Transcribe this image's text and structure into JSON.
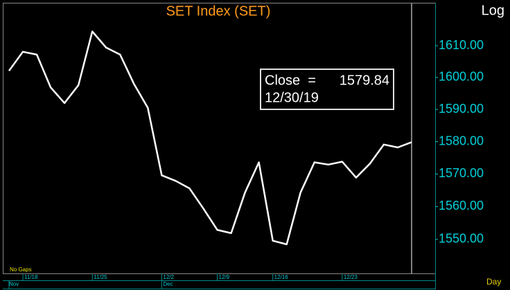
{
  "chart_data": {
    "type": "line",
    "title": "SET Index (SET)",
    "scale_label": "Log",
    "log_scale": true,
    "period_label": "Day",
    "gaps_label": "No Gaps",
    "categories": [
      null,
      "11/18",
      null,
      null,
      null,
      null,
      "11/25",
      null,
      null,
      null,
      null,
      "12/2",
      null,
      null,
      null,
      "12/9",
      null,
      null,
      null,
      "12/16",
      null,
      null,
      null,
      null,
      "12/23",
      null,
      null,
      null,
      null,
      null
    ],
    "months": [
      "Nov",
      null,
      null,
      null,
      null,
      null,
      null,
      null,
      null,
      null,
      null,
      "Dec",
      null,
      null,
      null,
      null,
      null,
      null,
      null,
      null,
      null,
      null,
      null,
      null,
      null,
      null,
      null,
      null,
      null,
      null
    ],
    "values": [
      1602.1,
      1608.1,
      1607.2,
      1596.9,
      1592.0,
      1597.6,
      1614.5,
      1609.4,
      1607.2,
      1598.0,
      1590.5,
      1569.6,
      1567.9,
      1565.6,
      1559.4,
      1552.9,
      1551.9,
      1564.3,
      1573.6,
      1549.6,
      1548.5,
      1564.3,
      1573.6,
      1572.9,
      1573.8,
      1568.9,
      1573.2,
      1579.1,
      1578.2,
      1579.84
    ],
    "color": "#ffffff",
    "ylim": [
      1539.7,
      1623.4
    ],
    "yticks": [
      {
        "value": 1550,
        "label": "1550.00"
      },
      {
        "value": 1560,
        "label": "1560.00"
      },
      {
        "value": 1570,
        "label": "1570.00"
      },
      {
        "value": 1580,
        "label": "1580.00"
      },
      {
        "value": 1590,
        "label": "1590.00"
      },
      {
        "value": 1600,
        "label": "1600.00"
      },
      {
        "value": 1610,
        "label": "1610.00"
      }
    ],
    "cursor": {
      "field": "Close  =",
      "date": "12/30/19"
    }
  }
}
